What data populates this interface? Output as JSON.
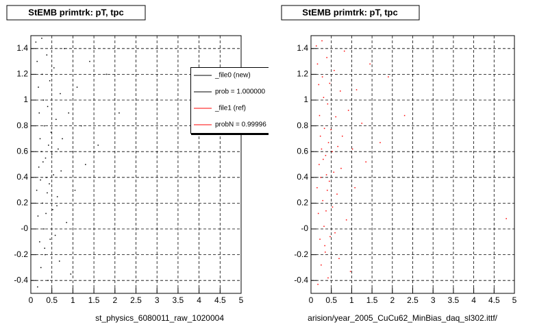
{
  "chart_data": [
    {
      "type": "scatter",
      "title": "StEMB primtrk: pT, tpc",
      "x_label": "st_physics_6080011_raw_1020004",
      "xlim": [
        0,
        5
      ],
      "ylim": [
        -0.5,
        1.5
      ],
      "xticks": [
        0,
        0.5,
        1,
        1.5,
        2,
        2.5,
        3,
        3.5,
        4,
        4.5,
        5
      ],
      "yticks": [
        -0.4,
        -0.2,
        {
          "value": 0,
          "label": "-0"
        },
        0.2,
        0.4,
        0.6,
        0.8,
        1,
        1.2,
        1.4
      ],
      "grid": true,
      "legend": [
        {
          "label": "_file0 (new)",
          "color": "#000000"
        },
        {
          "label": "prob = 1.000000",
          "color": "#000000"
        },
        {
          "label": "_file1 (ref)",
          "color": "#ff0000"
        },
        {
          "label": "probN = 0.99996",
          "color": "#ff0000"
        }
      ],
      "series": [
        {
          "color": "#000000",
          "x": [
            0.12,
            0.15,
            0.18,
            0.2,
            0.22,
            0.25,
            0.27,
            0.3,
            0.32,
            0.35,
            0.38,
            0.4,
            0.42,
            0.45,
            0.48,
            0.5,
            0.55,
            0.6,
            0.65,
            0.7,
            0.75,
            0.8,
            0.9,
            1.0,
            1.1,
            1.2,
            1.4,
            1.6,
            0.14,
            0.17,
            0.21,
            0.24,
            0.28,
            0.31,
            0.34,
            0.37,
            0.41,
            0.44,
            0.52,
            0.58,
            0.63,
            0.68,
            0.72,
            0.85,
            0.95,
            1.05,
            1.3,
            1.8,
            2.1,
            0.16,
            0.19,
            0.23,
            0.26,
            0.29,
            0.33,
            0.36,
            0.39,
            0.46,
            0.54,
            0.62
          ],
          "values": [
            1.45,
            1.3,
            1.1,
            0.9,
            0.7,
            0.6,
            1.2,
            1.0,
            0.8,
            0.55,
            1.35,
            0.95,
            0.65,
            1.15,
            0.75,
            0.58,
            1.25,
            0.85,
            0.62,
            1.05,
            0.7,
            1.4,
            0.9,
            0.6,
            1.1,
            0.8,
            1.3,
            0.65,
            0.3,
            0.1,
            -0.1,
            -0.3,
            0.2,
            0,
            -0.2,
            0.4,
            -0.4,
            0.35,
            0.15,
            -0.05,
            0.25,
            -0.25,
            0.45,
            0.05,
            -0.35,
            0.3,
            0.5,
            1.2,
            0.9,
            -0.45,
            0.48,
            0.38,
            1.48,
            0.52,
            -0.15,
            0.12,
            0.28,
            -0.08,
            0.42,
            0.18
          ]
        }
      ]
    },
    {
      "type": "scatter",
      "title": "StEMB primtrk: pT, tpc",
      "x_label": "arision/year_2005_CuCu62_MinBias_daq_sl302.ittf/",
      "xlim": [
        0,
        5
      ],
      "ylim": [
        -0.5,
        1.5
      ],
      "xticks": [
        0,
        0.5,
        1,
        1.5,
        2,
        2.5,
        3,
        3.5,
        4,
        4.5,
        5
      ],
      "yticks": [
        -0.4,
        -0.2,
        {
          "value": 0,
          "label": "-0"
        },
        0.2,
        0.4,
        0.6,
        0.8,
        1,
        1.2,
        1.4
      ],
      "grid": true,
      "series": [
        {
          "color": "#ff0000",
          "x": [
            0.13,
            0.16,
            0.19,
            0.21,
            0.23,
            0.26,
            0.28,
            0.31,
            0.33,
            0.36,
            0.39,
            0.41,
            0.43,
            0.46,
            0.49,
            0.52,
            0.57,
            0.61,
            0.66,
            0.72,
            0.77,
            0.82,
            0.92,
            1.02,
            1.12,
            1.25,
            1.45,
            1.7,
            0.15,
            0.18,
            0.22,
            0.25,
            0.29,
            0.32,
            0.35,
            0.38,
            0.42,
            0.45,
            0.53,
            0.59,
            0.64,
            0.69,
            0.74,
            0.87,
            0.97,
            1.08,
            1.35,
            1.9,
            2.3,
            0.17,
            0.2,
            0.24,
            0.27,
            0.3,
            0.34,
            0.37,
            0.4,
            0.47,
            0.56,
            4.8
          ],
          "values": [
            1.42,
            1.28,
            1.12,
            0.88,
            0.72,
            0.62,
            1.18,
            1.02,
            0.78,
            0.57,
            1.33,
            0.97,
            0.67,
            1.13,
            0.77,
            0.6,
            1.23,
            0.87,
            0.64,
            1.07,
            0.72,
            1.38,
            0.92,
            0.62,
            1.08,
            0.82,
            1.28,
            0.67,
            0.32,
            0.12,
            -0.08,
            -0.28,
            0.22,
            0.02,
            -0.18,
            0.42,
            -0.38,
            0.37,
            0.17,
            -0.03,
            0.27,
            -0.23,
            0.47,
            0.07,
            -0.33,
            0.32,
            0.52,
            1.18,
            0.88,
            -0.43,
            0.5,
            0.4,
            1.46,
            0.54,
            -0.13,
            0.14,
            0.3,
            -0.06,
            0.44,
            0.08
          ]
        }
      ]
    }
  ]
}
